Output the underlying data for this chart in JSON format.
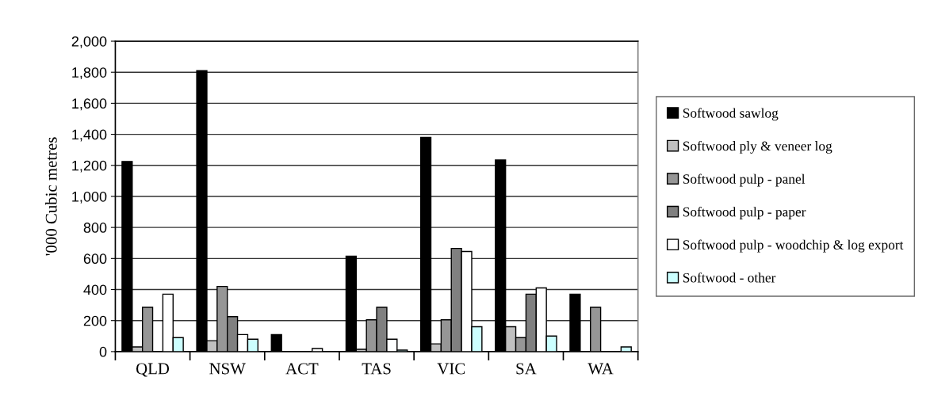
{
  "chart_data": {
    "type": "bar",
    "ylabel": "'000 Cubic metres",
    "categories": [
      "QLD",
      "NSW",
      "ACT",
      "TAS",
      "VIC",
      "SA",
      "WA"
    ],
    "series": [
      {
        "name": "Softwood sawlog",
        "color": "#000000",
        "values": [
          1225,
          1810,
          110,
          615,
          1380,
          1235,
          370
        ]
      },
      {
        "name": "Softwood ply & veneer log",
        "color": "#c0c0c0",
        "values": [
          30,
          70,
          null,
          15,
          50,
          160,
          null
        ]
      },
      {
        "name": "Softwood pulp - panel",
        "color": "#969696",
        "values": [
          285,
          420,
          null,
          205,
          205,
          90,
          285
        ]
      },
      {
        "name": "Softwood pulp - paper",
        "color": "#808080",
        "values": [
          null,
          225,
          null,
          285,
          665,
          370,
          null
        ]
      },
      {
        "name": "Softwood pulp - woodchip & log export",
        "color": "#ffffff",
        "values": [
          370,
          110,
          20,
          80,
          645,
          410,
          null
        ]
      },
      {
        "name": "Softwood - other",
        "color": "#ccffff",
        "values": [
          90,
          80,
          null,
          10,
          160,
          100,
          30
        ]
      }
    ],
    "ylim": [
      0,
      2000
    ],
    "yticks": [
      {
        "value": 0,
        "label": "0"
      },
      {
        "value": 200,
        "label": "200"
      },
      {
        "value": 400,
        "label": "400"
      },
      {
        "value": 600,
        "label": "600"
      },
      {
        "value": 800,
        "label": "800"
      },
      {
        "value": 1000,
        "label": "1,000"
      },
      {
        "value": 1200,
        "label": "1,200"
      },
      {
        "value": 1400,
        "label": "1,400"
      },
      {
        "value": 1600,
        "label": "1,600"
      },
      {
        "value": 1800,
        "label": "1,800"
      },
      {
        "value": 2000,
        "label": "2,000"
      }
    ],
    "grid": "y",
    "legend": "right"
  }
}
